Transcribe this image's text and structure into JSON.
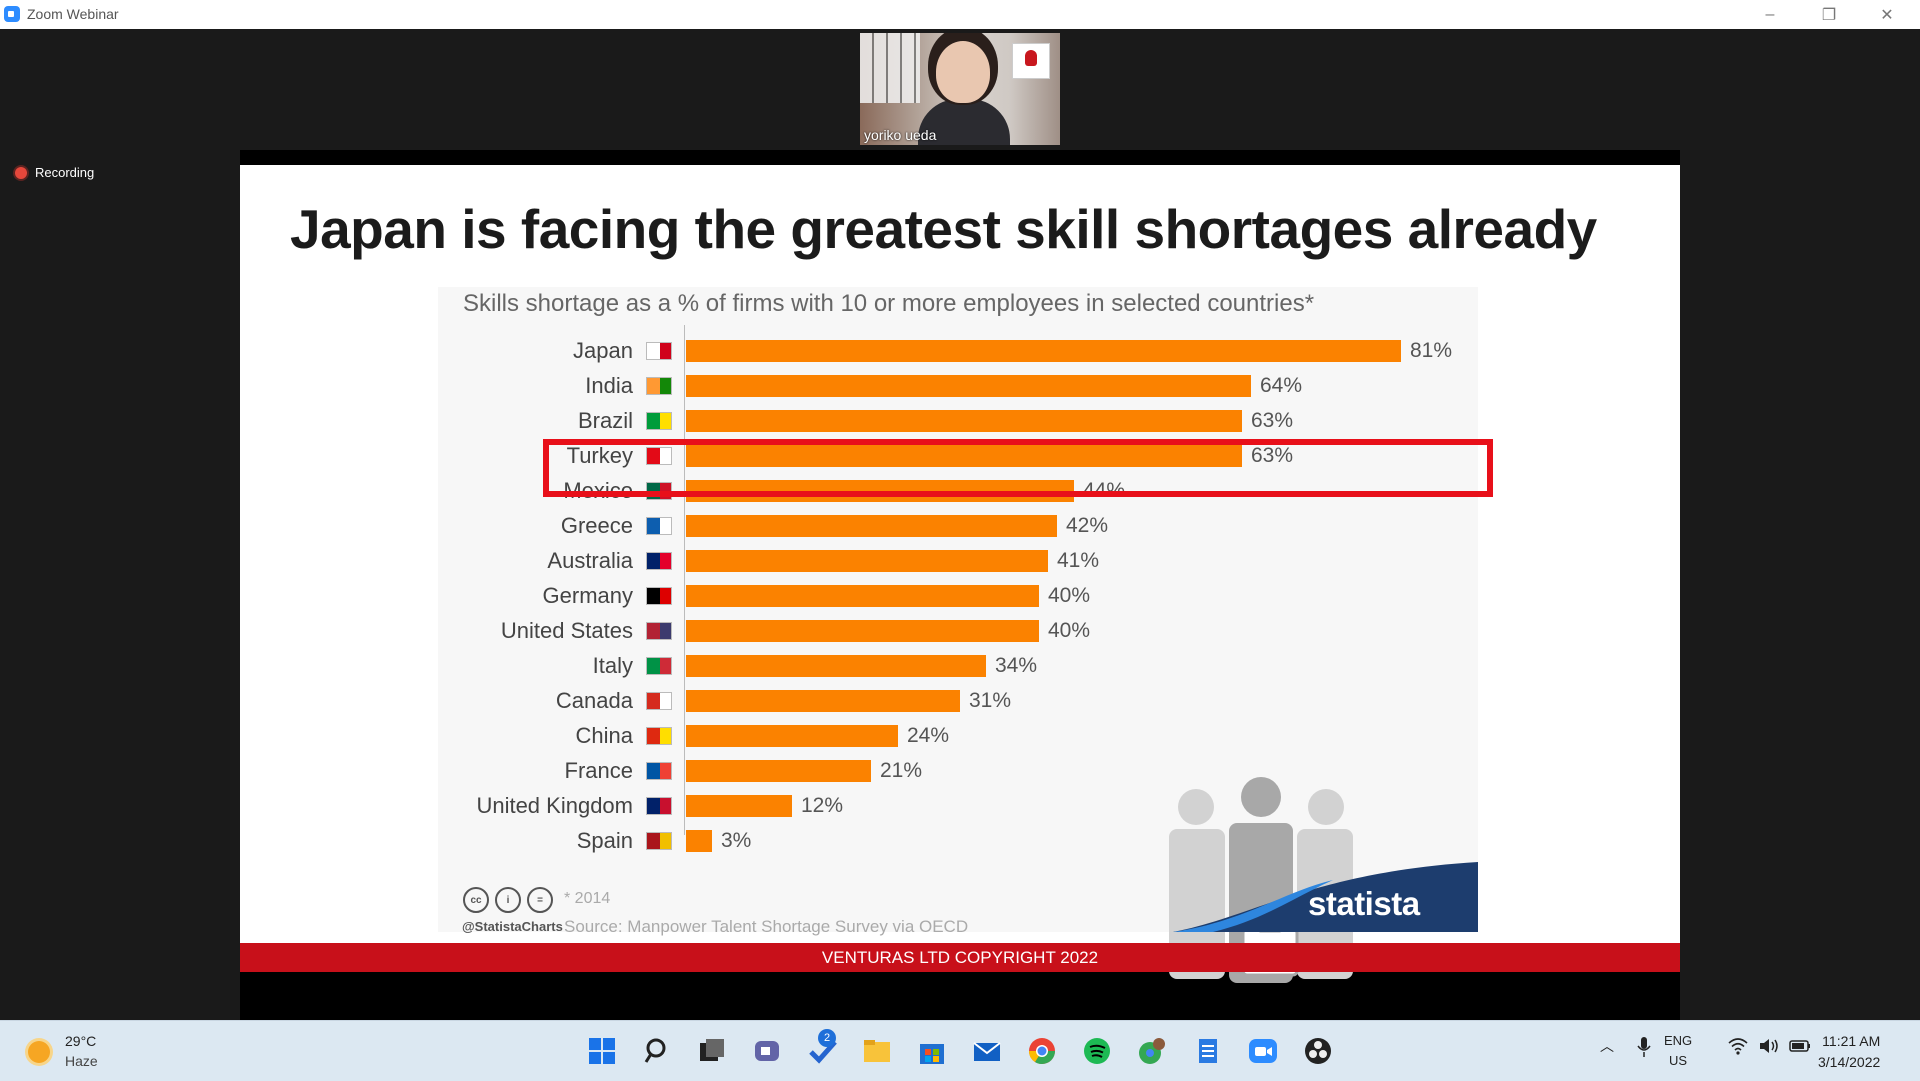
{
  "window": {
    "title": "Zoom Webinar",
    "controls": [
      "–",
      "❐",
      "✕"
    ]
  },
  "video": {
    "participant_name": "yoriko ueda"
  },
  "recording": {
    "label": "Recording"
  },
  "slide": {
    "title": "Japan is facing the greatest skill shortages already",
    "copyright": "VENTURAS LTD COPYRIGHT 2022",
    "brand": "statista",
    "handle": "@StatistaCharts",
    "footnote": "* 2014",
    "source": "Source: Manpower Talent Shortage Survey via OECD",
    "license_icons": [
      "cc",
      "i",
      "="
    ],
    "highlight_color": "#e8101a"
  },
  "chart_data": {
    "type": "bar",
    "orientation": "horizontal",
    "title": "Skills shortage as a % of firms with 10 or more employees in selected countries*",
    "categories": [
      "Japan",
      "India",
      "Brazil",
      "Turkey",
      "Mexico",
      "Greece",
      "Australia",
      "Germany",
      "United States",
      "Italy",
      "Canada",
      "China",
      "France",
      "United Kingdom",
      "Spain"
    ],
    "values": [
      81,
      64,
      63,
      63,
      44,
      42,
      41,
      40,
      40,
      34,
      31,
      24,
      21,
      12,
      3
    ],
    "value_labels": [
      "81%",
      "64%",
      "63%",
      "63%",
      "44%",
      "42%",
      "41%",
      "40%",
      "40%",
      "34%",
      "31%",
      "24%",
      "21%",
      "12%",
      "3%"
    ],
    "unit": "%",
    "xlim": [
      0,
      81
    ],
    "bar_color": "#fb8200",
    "highlighted_category": "Japan"
  },
  "taskbar": {
    "weather": {
      "temp": "29°C",
      "desc": "Haze"
    },
    "notification_badge": "2",
    "language": [
      "ENG",
      "US"
    ],
    "time": "11:21 AM",
    "date": "3/14/2022",
    "apps": [
      "start-icon",
      "search-icon",
      "task-view-icon",
      "chat-icon",
      "todo-icon",
      "file-explorer-icon",
      "store-icon",
      "mail-icon",
      "chrome-icon",
      "spotify-icon",
      "chrome-profile-icon",
      "notepad-icon",
      "zoom-icon",
      "obs-icon"
    ]
  }
}
